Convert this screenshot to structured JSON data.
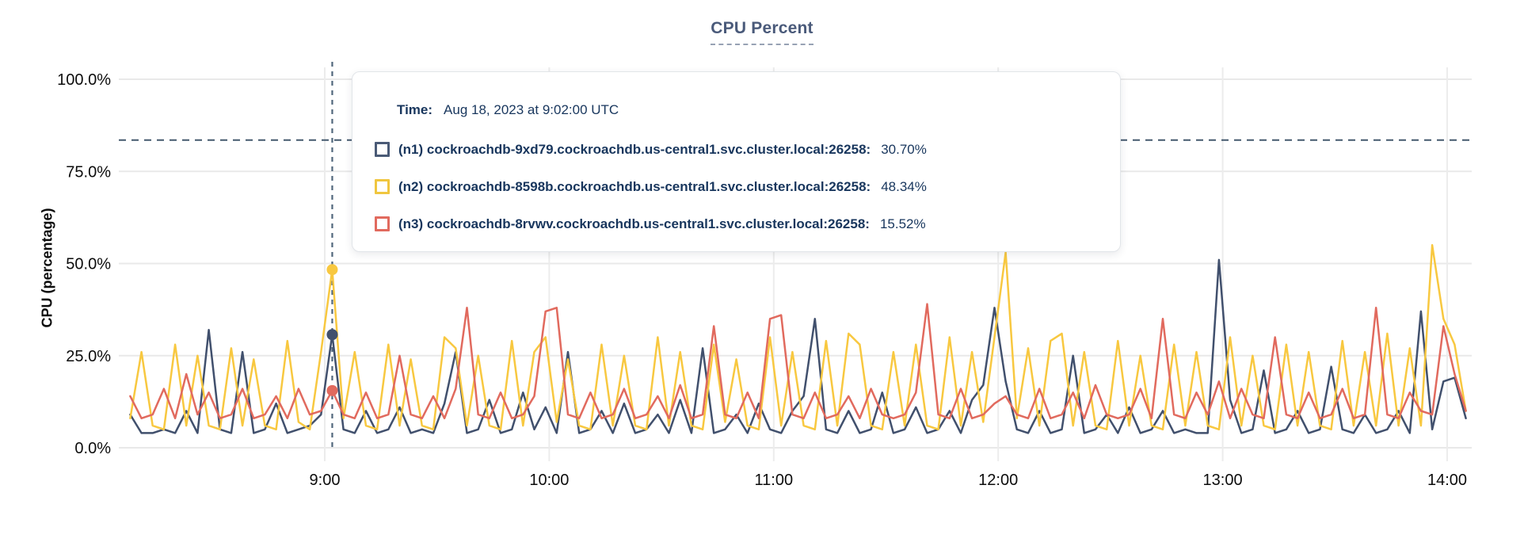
{
  "header": {
    "title": "CPU Percent"
  },
  "tooltip": {
    "time_label": "Time:",
    "time_value": "Aug 18, 2023 at 9:02:00 UTC",
    "rows": [
      {
        "id": "n1",
        "label": "(n1) cockroachdb-9xd79.cockroachdb.us-central1.svc.cluster.local:26258:",
        "value": "30.70%",
        "color": "#4a5a76"
      },
      {
        "id": "n2",
        "label": "(n2) cockroachdb-8598b.cockroachdb.us-central1.svc.cluster.local:26258:",
        "value": "48.34%",
        "color": "#f0c63f"
      },
      {
        "id": "n3",
        "label": "(n3) cockroachdb-8rvwv.cockroachdb.us-central1.svc.cluster.local:26258:",
        "value": "15.52%",
        "color": "#e16a5e"
      }
    ]
  },
  "chart_data": {
    "type": "line",
    "title": "CPU Percent",
    "xlabel": "",
    "ylabel": "CPU (percentage)",
    "ylim": [
      0,
      100
    ],
    "grid": true,
    "legend_position": "tooltip-overlay",
    "y_ticks": [
      {
        "value": 100,
        "label": "100.0%"
      },
      {
        "value": 75,
        "label": "75.0%"
      },
      {
        "value": 50,
        "label": "50.0%"
      },
      {
        "value": 25,
        "label": "25.0%"
      },
      {
        "value": 0,
        "label": "0.0%"
      }
    ],
    "x_ticks": [
      {
        "minute": 0,
        "label": "9:00"
      },
      {
        "minute": 60,
        "label": "10:00"
      },
      {
        "minute": 120,
        "label": "11:00"
      },
      {
        "minute": 180,
        "label": "12:00"
      },
      {
        "minute": 240,
        "label": "13:00"
      },
      {
        "minute": 300,
        "label": "14:00"
      }
    ],
    "x_start_min": -52,
    "x_step_min": 3,
    "threshold_percent": 83.5,
    "hover": {
      "minute": 2,
      "time": "9:02:00 UTC",
      "values": {
        "n1": 30.7,
        "n2": 48.34,
        "n3": 15.52
      }
    },
    "series": [
      {
        "id": "n1",
        "name": "(n1) cockroachdb-9xd79.cockroachdb.us-central1.svc.cluster.local:26258",
        "color": "#41506d",
        "values": [
          9,
          4,
          4,
          5,
          4,
          10,
          4,
          32,
          5,
          4,
          26,
          4,
          5,
          12,
          4,
          5,
          6,
          9,
          30.7,
          5,
          4,
          10,
          4,
          5,
          11,
          4,
          5,
          4,
          12,
          26,
          4,
          5,
          13,
          4,
          5,
          15,
          5,
          11,
          4,
          26,
          4,
          5,
          10,
          4,
          12,
          4,
          5,
          9,
          4,
          13,
          4,
          27,
          4,
          5,
          9,
          4,
          12,
          5,
          4,
          10,
          14,
          35,
          5,
          4,
          10,
          4,
          5,
          15,
          4,
          5,
          11,
          4,
          5,
          10,
          4,
          13,
          17,
          38,
          18,
          5,
          4,
          10,
          4,
          5,
          25,
          4,
          5,
          9,
          4,
          11,
          4,
          5,
          10,
          4,
          5,
          4,
          4,
          51,
          13,
          4,
          5,
          21,
          4,
          5,
          10,
          4,
          5,
          22,
          5,
          4,
          9,
          4,
          5,
          10,
          4,
          37,
          5,
          18,
          19,
          8
        ]
      },
      {
        "id": "n2",
        "name": "(n2) cockroachdb-8598b.cockroachdb.us-central1.svc.cluster.local:26258",
        "color": "#f8c840",
        "values": [
          8,
          26,
          6,
          5,
          28,
          6,
          25,
          6,
          5,
          27,
          6,
          24,
          6,
          5,
          29,
          7,
          5,
          26,
          48.34,
          8,
          26,
          6,
          5,
          28,
          6,
          24,
          6,
          5,
          30,
          27,
          6,
          25,
          6,
          5,
          29,
          6,
          26,
          30,
          7,
          24,
          6,
          5,
          28,
          6,
          25,
          6,
          5,
          30,
          6,
          26,
          6,
          5,
          28,
          7,
          24,
          6,
          5,
          30,
          6,
          26,
          6,
          5,
          29,
          6,
          31,
          28,
          6,
          5,
          26,
          6,
          28,
          6,
          5,
          30,
          6,
          26,
          7,
          30,
          53,
          8,
          27,
          6,
          29,
          31,
          6,
          26,
          6,
          5,
          29,
          6,
          25,
          6,
          5,
          28,
          6,
          26,
          6,
          5,
          30,
          6,
          25,
          6,
          5,
          28,
          6,
          26,
          6,
          5,
          29,
          6,
          26,
          6,
          31,
          6,
          27,
          6,
          55,
          35,
          28,
          10
        ]
      },
      {
        "id": "n3",
        "name": "(n3) cockroachdb-8rvwv.cockroachdb.us-central1.svc.cluster.local:26258",
        "color": "#e16a5e",
        "values": [
          14,
          8,
          9,
          16,
          8,
          20,
          9,
          15,
          8,
          9,
          16,
          8,
          9,
          14,
          8,
          16,
          9,
          10,
          15.52,
          9,
          8,
          15,
          8,
          9,
          25,
          9,
          8,
          14,
          8,
          16,
          38,
          9,
          8,
          15,
          8,
          9,
          14,
          37,
          38,
          9,
          8,
          15,
          8,
          9,
          16,
          8,
          9,
          14,
          8,
          17,
          8,
          9,
          33,
          9,
          8,
          15,
          8,
          35,
          36,
          9,
          8,
          15,
          8,
          9,
          14,
          8,
          16,
          9,
          8,
          9,
          15,
          39,
          9,
          8,
          16,
          8,
          9,
          12,
          14,
          9,
          8,
          16,
          8,
          9,
          15,
          8,
          17,
          9,
          8,
          9,
          16,
          8,
          35,
          9,
          8,
          15,
          9,
          18,
          8,
          16,
          9,
          8,
          30,
          9,
          8,
          15,
          8,
          9,
          16,
          8,
          9,
          38,
          9,
          8,
          15,
          10,
          9,
          33,
          20,
          10
        ]
      }
    ]
  }
}
